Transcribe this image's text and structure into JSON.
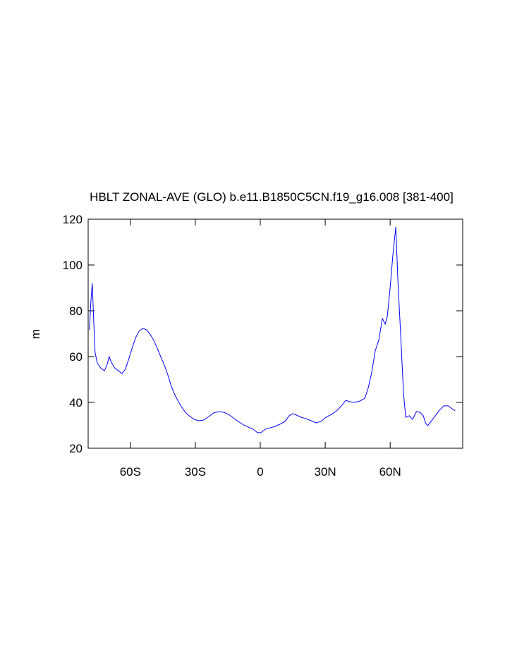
{
  "chart_data": {
    "type": "line",
    "title": "HBLT ZONAL-AVE (GLO) b.e11.B1850C5CN.f19_g16.008 [381-400]",
    "y_label": "m",
    "x": [
      -78.9,
      -78.3,
      -77.6,
      -77,
      -76.3,
      -75.3,
      -73.7,
      -72,
      -70.8,
      -69.8,
      -68.8,
      -67.2,
      -65.5,
      -63.9,
      -62.3,
      -60.6,
      -59,
      -57.4,
      -55.8,
      -54.1,
      -52.5,
      -50.9,
      -49.2,
      -47.6,
      -46,
      -44.3,
      -42.7,
      -41.1,
      -39.5,
      -37.8,
      -36.2,
      -34.6,
      -32.9,
      -30.6,
      -28.4,
      -26.1,
      -23.8,
      -21.5,
      -19.2,
      -16.9,
      -14.7,
      -12.4,
      -10.1,
      -7.8,
      -5.5,
      -3.3,
      -1.3,
      0.3,
      2.3,
      4.6,
      6.8,
      9.1,
      11.4,
      13.4,
      15,
      16.6,
      18.9,
      21.2,
      23.5,
      25.8,
      28,
      30.3,
      32.9,
      35.2,
      37.5,
      39.5,
      41.4,
      43.7,
      46,
      48.3,
      49.9,
      51.5,
      53.1,
      54.8,
      56.4,
      57.7,
      58.7,
      60,
      61.3,
      62.6,
      63.6,
      64.9,
      66.2,
      67.2,
      68.8,
      70.4,
      72.1,
      73.7,
      75.3,
      76.3,
      77.3,
      78.9,
      80.9,
      82.8,
      84.8,
      86.7,
      88.7,
      90
    ],
    "series": [
      {
        "color": "#0000ff",
        "values": [
          71.7,
          83.4,
          92,
          77,
          61.8,
          57.2,
          55,
          53.8,
          56.3,
          60,
          57.5,
          55,
          53.8,
          52.6,
          54.5,
          59.4,
          64.3,
          68.6,
          71.4,
          72.3,
          71.7,
          69.8,
          67.1,
          63.7,
          60,
          56.3,
          52,
          47.1,
          43.4,
          40.3,
          37.8,
          35.7,
          34.2,
          32.6,
          32,
          32.3,
          33.8,
          35.4,
          36,
          35.7,
          34.8,
          33.2,
          31.7,
          30.2,
          29.2,
          28.3,
          26.8,
          26.8,
          28.3,
          28.9,
          29.5,
          30.5,
          31.7,
          34.2,
          35.1,
          34.5,
          33.5,
          32.9,
          32,
          31.1,
          31.7,
          33.5,
          34.8,
          36.3,
          38.5,
          40.9,
          40.3,
          40,
          40.6,
          41.8,
          46.5,
          53.2,
          62.5,
          67.4,
          76.6,
          74.2,
          77.8,
          90.2,
          104.9,
          116.6,
          92.6,
          68.6,
          43.4,
          33.5,
          34.2,
          32.6,
          36,
          35.7,
          34.2,
          31.1,
          29.8,
          31.7,
          34.2,
          36.6,
          38.5,
          38.5,
          37.2,
          36.3
        ]
      }
    ],
    "xlim": [
      -79.5,
      93.5
    ],
    "xticks": [
      {
        "value": -60,
        "label": "60S"
      },
      {
        "value": -30,
        "label": "30S"
      },
      0,
      {
        "value": 30,
        "label": "30N"
      },
      {
        "value": 60,
        "label": "60N"
      }
    ],
    "ylim": [
      20,
      120
    ],
    "yticks": [
      20,
      40,
      60,
      80,
      100,
      120
    ]
  }
}
